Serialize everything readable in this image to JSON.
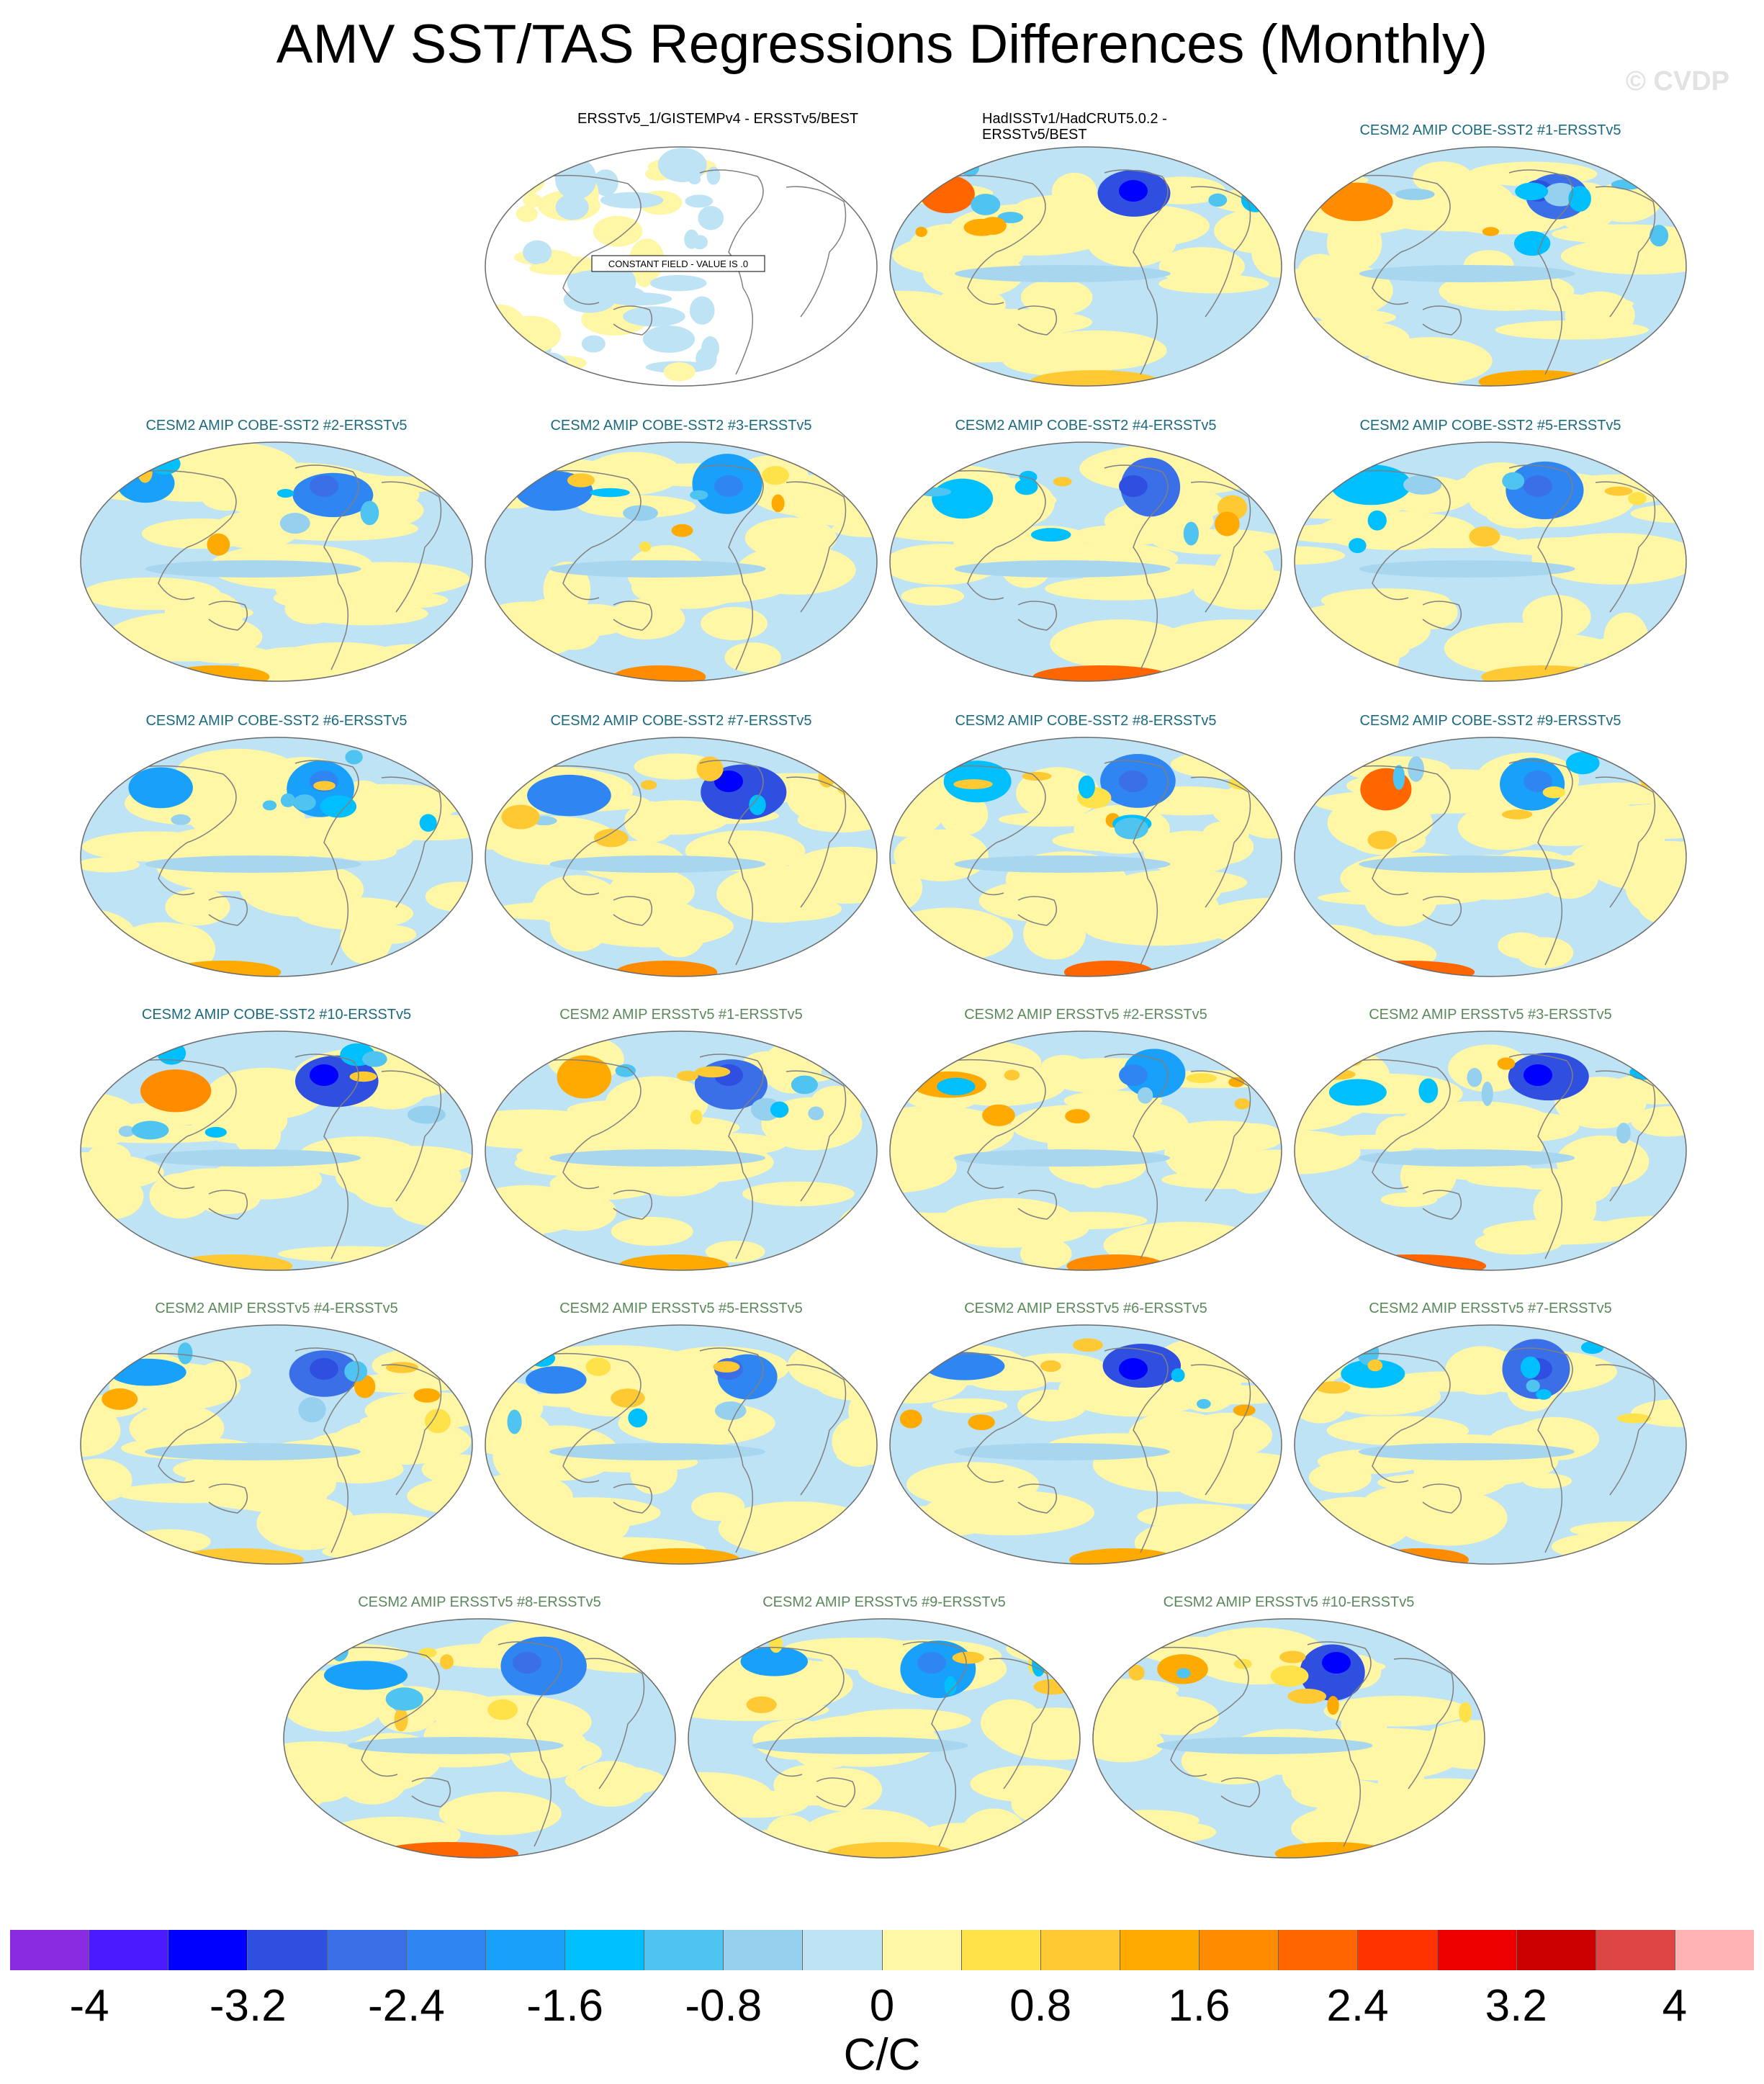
{
  "title": "AMV SST/TAS Regressions Differences (Monthly)",
  "watermark": "© CVDP",
  "colors": {
    "ocean_neutral_pos": "#fff6a6",
    "ocean_neutral_neg": "#bde3f5",
    "coast": "#808080",
    "border": "#6b6b6b"
  },
  "panels": [
    {
      "title": "ERSSTv5_1/GISTEMPv4 - ERSSTv5/BEST",
      "kind": "obs",
      "constant_field": "CONSTANT FIELD - VALUE IS .0"
    },
    {
      "title": "HadISSTv1/HadCRUT5.0.2 - ERSSTv5/BEST",
      "kind": "obs"
    },
    {
      "title": "CESM2 AMIP COBE-SST2 #1-ERSSTv5",
      "kind": "amip-cobe"
    },
    {
      "title": "CESM2 AMIP COBE-SST2 #2-ERSSTv5",
      "kind": "amip-cobe"
    },
    {
      "title": "CESM2 AMIP COBE-SST2 #3-ERSSTv5",
      "kind": "amip-cobe"
    },
    {
      "title": "CESM2 AMIP COBE-SST2 #4-ERSSTv5",
      "kind": "amip-cobe"
    },
    {
      "title": "CESM2 AMIP COBE-SST2 #5-ERSSTv5",
      "kind": "amip-cobe"
    },
    {
      "title": "CESM2 AMIP COBE-SST2 #6-ERSSTv5",
      "kind": "amip-cobe"
    },
    {
      "title": "CESM2 AMIP COBE-SST2 #7-ERSSTv5",
      "kind": "amip-cobe"
    },
    {
      "title": "CESM2 AMIP COBE-SST2 #8-ERSSTv5",
      "kind": "amip-cobe"
    },
    {
      "title": "CESM2 AMIP COBE-SST2 #9-ERSSTv5",
      "kind": "amip-cobe"
    },
    {
      "title": "CESM2 AMIP COBE-SST2 #10-ERSSTv5",
      "kind": "amip-cobe"
    },
    {
      "title": "CESM2 AMIP ERSSTv5 #1-ERSSTv5",
      "kind": "amip-ersst"
    },
    {
      "title": "CESM2 AMIP ERSSTv5 #2-ERSSTv5",
      "kind": "amip-ersst"
    },
    {
      "title": "CESM2 AMIP ERSSTv5 #3-ERSSTv5",
      "kind": "amip-ersst"
    },
    {
      "title": "CESM2 AMIP ERSSTv5 #4-ERSSTv5",
      "kind": "amip-ersst"
    },
    {
      "title": "CESM2 AMIP ERSSTv5 #5-ERSSTv5",
      "kind": "amip-ersst"
    },
    {
      "title": "CESM2 AMIP ERSSTv5 #6-ERSSTv5",
      "kind": "amip-ersst"
    },
    {
      "title": "CESM2 AMIP ERSSTv5 #7-ERSSTv5",
      "kind": "amip-ersst"
    },
    {
      "title": "CESM2 AMIP ERSSTv5 #8-ERSSTv5",
      "kind": "amip-ersst"
    },
    {
      "title": "CESM2 AMIP ERSSTv5 #9-ERSSTv5",
      "kind": "amip-ersst"
    },
    {
      "title": "CESM2 AMIP ERSSTv5 #10-ERSSTv5",
      "kind": "amip-ersst"
    }
  ],
  "colorbar": {
    "colors": [
      "#8a2be2",
      "#4b1aff",
      "#0000ff",
      "#2f4fe0",
      "#3a6fe8",
      "#2f86f2",
      "#18a0fa",
      "#00bfff",
      "#4fc4f0",
      "#95d0ef",
      "#bde3f5",
      "#fff6a6",
      "#ffe24a",
      "#ffc933",
      "#ffaa00",
      "#ff8c00",
      "#ff6600",
      "#ff3300",
      "#ee0000",
      "#cc0000",
      "#dd4444",
      "#ffb3b3"
    ],
    "tick_labels": [
      "-4",
      "-3.2",
      "-2.4",
      "-1.6",
      "-0.8",
      "0",
      "0.8",
      "1.6",
      "2.4",
      "3.2",
      "4"
    ],
    "units": "C/C"
  }
}
